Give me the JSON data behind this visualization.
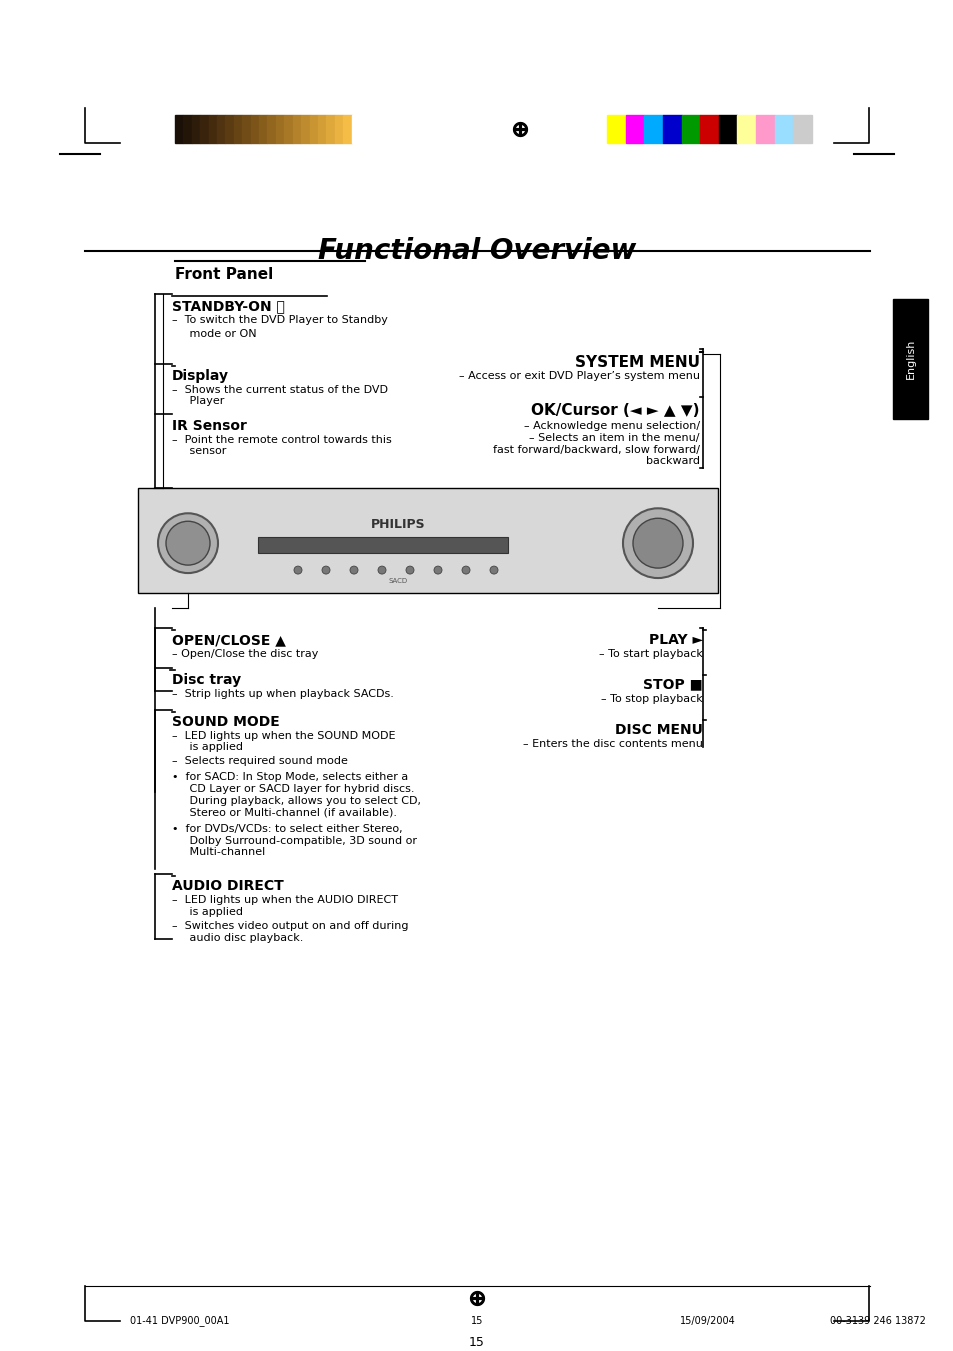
{
  "title": "Functional Overview",
  "subtitle": "Front Panel",
  "bg_color": "#ffffff",
  "title_fontsize": 20,
  "subtitle_fontsize": 12,
  "page_number": "15",
  "footer_left": "01-41 DVP900_00A1",
  "footer_center": "15",
  "footer_right": "15/09/2004",
  "color_bar_left": [
    "#1a1008",
    "#231508",
    "#2e1c0a",
    "#3a230c",
    "#452b0e",
    "#503310",
    "#5b3b12",
    "#664414",
    "#714c16",
    "#7c5419",
    "#875d1c",
    "#92661f",
    "#9d6f22",
    "#a87826",
    "#b3822a",
    "#be8b2e",
    "#c99432",
    "#d49e36",
    "#dfa83b",
    "#eab240",
    "#f5bc46",
    "#ffffff"
  ],
  "color_bar_right": [
    "#ffff00",
    "#ff00ff",
    "#00aaff",
    "#0000cc",
    "#009900",
    "#cc0000",
    "#000000",
    "#ffff99",
    "#ff99cc",
    "#99ddff",
    "#cccccc"
  ],
  "english_tab": "English",
  "standby_label": "STANDBY-ON ⏻",
  "standby_desc1": "–  To switch the DVD Player to Standby",
  "standby_desc2": "     mode or ON",
  "display_label": "Display",
  "display_desc": "–  Shows the current status of the DVD\n     Player",
  "ir_label": "IR Sensor",
  "ir_desc": "–  Point the remote control towards this\n     sensor",
  "system_menu_label": "SYSTEM MENU",
  "system_menu_desc": "– Access or exit DVD Player’s system menu",
  "ok_cursor_label": "OK/Cursor (◄ ► ▲ ▼)",
  "ok_cursor_desc1": "– Acknowledge menu selection/",
  "ok_cursor_desc2": "– Selects an item in the menu/",
  "ok_cursor_desc3": "fast forward/backward, slow forward/",
  "ok_cursor_desc4": "backward",
  "open_close_label": "OPEN/CLOSE ▲",
  "open_close_desc": "– Open/Close the disc tray",
  "disc_tray_label": "Disc tray",
  "disc_tray_desc": "–  Strip lights up when playback SACDs.",
  "sound_mode_label": "SOUND MODE",
  "sound_mode_desc1": "–  LED lights up when the SOUND MODE\n     is applied",
  "sound_mode_desc2": "–  Selects required sound mode",
  "sound_mode_desc3": "•  for SACD: In Stop Mode, selects either a\n     CD Layer or SACD layer for hybrid discs.\n     During playback, allows you to select CD,\n     Stereo or Multi-channel (if available).",
  "sound_mode_desc4": "•  for DVDs/VCDs: to select either Stereo,\n     Dolby Surround-compatible, 3D sound or\n     Multi-channel",
  "audio_direct_label": "AUDIO DIRECT",
  "audio_direct_desc1": "–  LED lights up when the AUDIO DIRECT\n     is applied",
  "audio_direct_desc2": "–  Switches video output on and off during\n     audio disc playback.",
  "play_label": "PLAY ►",
  "play_desc": "– To start playback",
  "stop_label": "STOP ■",
  "stop_desc": "– To stop playback",
  "disc_menu_label": "DISC MENU",
  "disc_menu_desc": "– Enters the disc contents menu"
}
